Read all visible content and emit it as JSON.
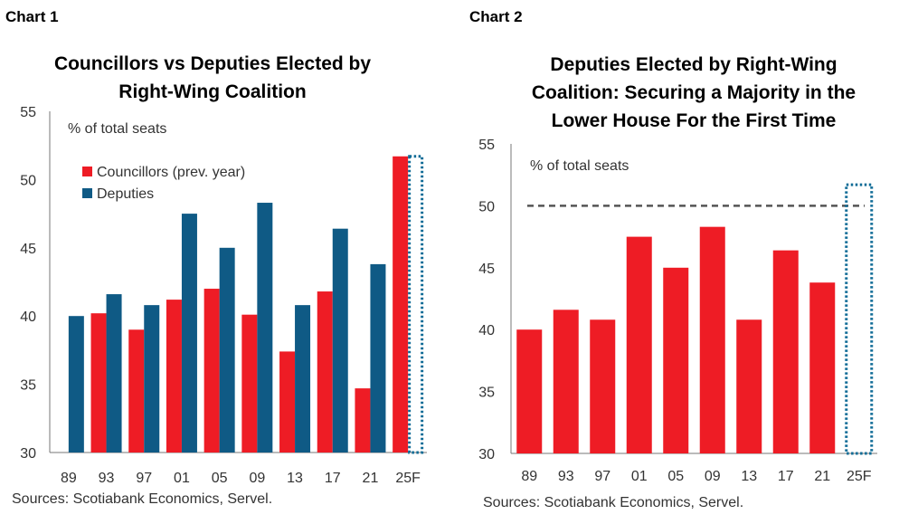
{
  "colors": {
    "red": "#ee1c25",
    "blue": "#0f5a85",
    "forecast_dotted": "#0f6b96",
    "reference_line": "#555555",
    "axis": "#777777"
  },
  "panel1": {
    "label": "Chart 1",
    "title_line1": "Councillors vs Deputies Elected by",
    "title_line2": "Right-Wing Coalition",
    "ylabel": "% of total seats",
    "source": "Sources: Scotiabank Economics, Servel."
  },
  "panel2": {
    "label": "Chart 2",
    "title_line1": "Deputies Elected by Right-Wing",
    "title_line2": "Coalition: Securing a Majority in the",
    "title_line3": "Lower House For the First Time",
    "ylabel": "% of total seats",
    "source": "Sources: Scotiabank Economics, Servel."
  },
  "chart_data": [
    {
      "type": "bar",
      "title": "Councillors vs Deputies Elected by Right-Wing Coalition",
      "ylabel": "% of total seats",
      "ylim": [
        30,
        55
      ],
      "yticks": [
        30,
        35,
        40,
        45,
        50,
        55
      ],
      "categories": [
        "89",
        "93",
        "97",
        "01",
        "05",
        "09",
        "13",
        "17",
        "21",
        "25F"
      ],
      "series": [
        {
          "name": "Councillors (prev. year)",
          "color": "#ee1c25",
          "values": [
            null,
            40.2,
            39.0,
            41.2,
            42.0,
            40.1,
            37.4,
            41.8,
            34.7,
            51.7
          ]
        },
        {
          "name": "Deputies",
          "color": "#0f5a85",
          "values": [
            40.0,
            41.6,
            40.8,
            47.5,
            45.0,
            48.3,
            40.8,
            46.4,
            43.8,
            null
          ]
        }
      ],
      "forecast_box": {
        "category": "25F",
        "top": 51.7,
        "style": "dotted"
      },
      "legend": "top-left"
    },
    {
      "type": "bar",
      "title": "Deputies Elected by Right-Wing Coalition: Securing a Majority in the Lower House For the First Time",
      "ylabel": "% of total seats",
      "ylim": [
        30,
        55
      ],
      "yticks": [
        30,
        35,
        40,
        45,
        50,
        55
      ],
      "categories": [
        "89",
        "93",
        "97",
        "01",
        "05",
        "09",
        "13",
        "17",
        "21",
        "25F"
      ],
      "values": [
        40.0,
        41.6,
        40.8,
        47.5,
        45.0,
        48.3,
        40.8,
        46.4,
        43.8,
        null
      ],
      "color": "#ee1c25",
      "reference_line": 50,
      "forecast_box": {
        "category": "25F",
        "top": 51.7,
        "style": "dotted"
      }
    }
  ]
}
